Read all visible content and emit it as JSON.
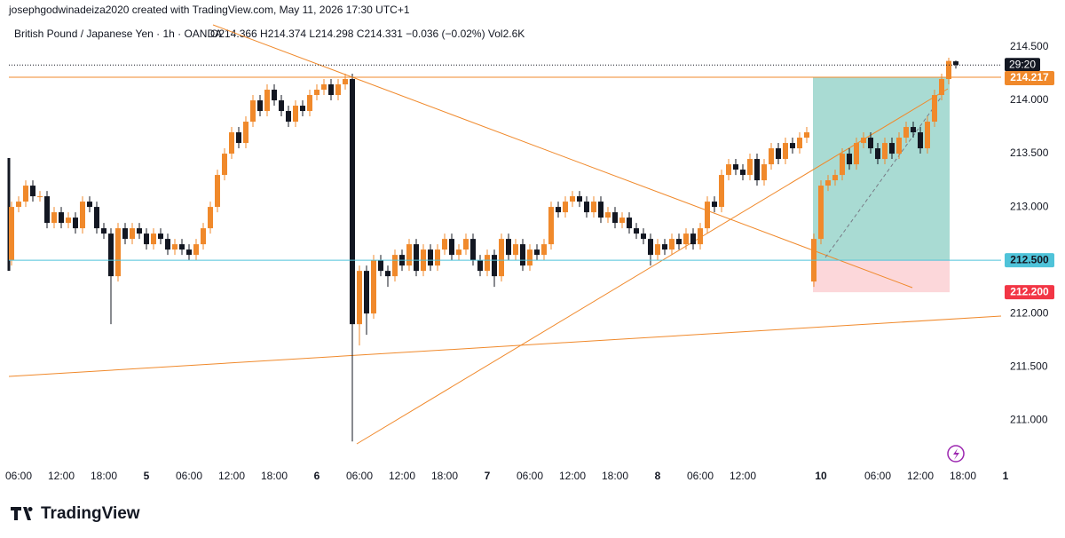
{
  "header": {
    "credit": "josephgodwinadeiza2020 created with TradingView.com, May 11, 2026 17:30 UTC+1",
    "symbol": "British Pound / Japanese Yen · 1h · OANDA",
    "ohlc": "O214.366 H214.374 L214.298 C214.331 −0.036 (−0.02%) Vol2.6K"
  },
  "footer": {
    "brand": "TradingView"
  },
  "chart_data": {
    "type": "candlestick",
    "up_color": "#f0892b",
    "down_color": "#131722",
    "ylim": [
      210.61,
      214.625
    ],
    "yticks": [
      {
        "value": 214.5,
        "label": "214.500"
      },
      {
        "value": 214.0,
        "label": "214.000"
      },
      {
        "value": 213.5,
        "label": "213.500"
      },
      {
        "value": 213.0,
        "label": "213.000"
      },
      {
        "value": 212.0,
        "label": "212.000"
      },
      {
        "value": 211.5,
        "label": "211.500"
      },
      {
        "value": 211.0,
        "label": "211.000"
      }
    ],
    "xticks": [
      {
        "value": 1,
        "label": "06:00"
      },
      {
        "value": 7,
        "label": "12:00"
      },
      {
        "value": 13,
        "label": "18:00"
      },
      {
        "value": 19,
        "label": "5"
      },
      {
        "value": 25,
        "label": "06:00"
      },
      {
        "value": 31,
        "label": "12:00"
      },
      {
        "value": 37,
        "label": "18:00"
      },
      {
        "value": 43,
        "label": "6"
      },
      {
        "value": 49,
        "label": "06:00"
      },
      {
        "value": 55,
        "label": "12:00"
      },
      {
        "value": 61,
        "label": "18:00"
      },
      {
        "value": 67,
        "label": "7"
      },
      {
        "value": 73,
        "label": "06:00"
      },
      {
        "value": 79,
        "label": "12:00"
      },
      {
        "value": 85,
        "label": "18:00"
      },
      {
        "value": 91,
        "label": "8"
      },
      {
        "value": 97,
        "label": "06:00"
      },
      {
        "value": 103,
        "label": "12:00"
      },
      {
        "value": 114,
        "label": "10"
      },
      {
        "value": 122,
        "label": "06:00"
      },
      {
        "value": 128,
        "label": "12:00"
      },
      {
        "value": 134,
        "label": "18:00"
      },
      {
        "value": 140,
        "label": "1"
      }
    ],
    "price_labels": [
      {
        "value": 214.217,
        "label": "214.217",
        "color": "#f0892b"
      },
      {
        "value": 212.5,
        "label": "212.500",
        "color": "#4fc3d9"
      },
      {
        "value": 212.2,
        "label": "212.200",
        "color": "#f23645"
      }
    ],
    "countdown": "29:20",
    "candles": [
      [
        212.5,
        213.05,
        212.45,
        213.0
      ],
      [
        213.0,
        213.1,
        212.95,
        213.05
      ],
      [
        213.05,
        213.25,
        213.0,
        213.2
      ],
      [
        213.2,
        213.25,
        213.05,
        213.1
      ],
      [
        213.1,
        213.15,
        213.05,
        213.1
      ],
      [
        213.1,
        213.15,
        212.8,
        212.85
      ],
      [
        212.85,
        213.0,
        212.8,
        212.95
      ],
      [
        212.95,
        213.0,
        212.8,
        212.85
      ],
      [
        212.85,
        212.95,
        212.8,
        212.9
      ],
      [
        212.9,
        212.95,
        212.75,
        212.8
      ],
      [
        212.8,
        213.1,
        212.75,
        213.05
      ],
      [
        213.05,
        213.1,
        212.95,
        213.0
      ],
      [
        213.0,
        213.05,
        212.75,
        212.8
      ],
      [
        212.8,
        212.85,
        212.7,
        212.75
      ],
      [
        212.75,
        212.8,
        211.9,
        212.35
      ],
      [
        212.35,
        212.85,
        212.3,
        212.8
      ],
      [
        212.8,
        212.85,
        212.65,
        212.7
      ],
      [
        212.7,
        212.85,
        212.65,
        212.8
      ],
      [
        212.8,
        212.85,
        212.7,
        212.75
      ],
      [
        212.75,
        212.8,
        212.6,
        212.65
      ],
      [
        212.65,
        212.8,
        212.6,
        212.75
      ],
      [
        212.75,
        212.8,
        212.65,
        212.7
      ],
      [
        212.7,
        212.75,
        212.55,
        212.6
      ],
      [
        212.6,
        212.7,
        212.55,
        212.65
      ],
      [
        212.65,
        212.7,
        212.55,
        212.6
      ],
      [
        212.6,
        212.65,
        212.5,
        212.55
      ],
      [
        212.55,
        212.7,
        212.5,
        212.65
      ],
      [
        212.65,
        212.85,
        212.6,
        212.8
      ],
      [
        212.8,
        213.05,
        212.75,
        213.0
      ],
      [
        213.0,
        213.35,
        212.95,
        213.3
      ],
      [
        213.3,
        213.55,
        213.25,
        213.5
      ],
      [
        213.5,
        213.75,
        213.45,
        213.7
      ],
      [
        213.7,
        213.75,
        213.55,
        213.6
      ],
      [
        213.6,
        213.85,
        213.55,
        213.8
      ],
      [
        213.8,
        214.05,
        213.75,
        214.0
      ],
      [
        214.0,
        214.05,
        213.85,
        213.9
      ],
      [
        213.9,
        214.15,
        213.85,
        214.1
      ],
      [
        214.1,
        214.15,
        213.95,
        214.0
      ],
      [
        214.0,
        214.05,
        213.85,
        213.9
      ],
      [
        213.9,
        213.95,
        213.75,
        213.8
      ],
      [
        213.8,
        214.0,
        213.75,
        213.95
      ],
      [
        213.95,
        214.0,
        213.85,
        213.9
      ],
      [
        213.9,
        214.1,
        213.85,
        214.05
      ],
      [
        214.05,
        214.15,
        214.0,
        214.1
      ],
      [
        214.1,
        214.2,
        214.05,
        214.15
      ],
      [
        214.15,
        214.2,
        214.0,
        214.05
      ],
      [
        214.05,
        214.2,
        214.0,
        214.15
      ],
      [
        214.15,
        214.25,
        214.1,
        214.2
      ],
      [
        214.2,
        214.25,
        210.8,
        211.9
      ],
      [
        211.9,
        212.45,
        211.7,
        212.4
      ],
      [
        212.4,
        212.45,
        211.8,
        212.0
      ],
      [
        212.0,
        212.55,
        211.95,
        212.5
      ],
      [
        212.5,
        212.55,
        212.35,
        212.4
      ],
      [
        212.4,
        212.45,
        212.25,
        212.35
      ],
      [
        212.35,
        212.6,
        212.3,
        212.55
      ],
      [
        212.55,
        212.6,
        212.4,
        212.45
      ],
      [
        212.45,
        212.7,
        212.4,
        212.65
      ],
      [
        212.65,
        212.7,
        212.35,
        212.4
      ],
      [
        212.4,
        212.65,
        212.35,
        212.6
      ],
      [
        212.6,
        212.65,
        212.4,
        212.45
      ],
      [
        212.45,
        212.65,
        212.4,
        212.6
      ],
      [
        212.6,
        212.75,
        212.55,
        212.7
      ],
      [
        212.7,
        212.75,
        212.5,
        212.55
      ],
      [
        212.55,
        212.65,
        212.5,
        212.6
      ],
      [
        212.6,
        212.75,
        212.55,
        212.7
      ],
      [
        212.7,
        212.75,
        212.45,
        212.5
      ],
      [
        212.5,
        212.55,
        212.35,
        212.4
      ],
      [
        212.4,
        212.6,
        212.35,
        212.55
      ],
      [
        212.55,
        212.6,
        212.25,
        212.35
      ],
      [
        212.35,
        212.75,
        212.3,
        212.7
      ],
      [
        212.7,
        212.75,
        212.5,
        212.55
      ],
      [
        212.55,
        212.7,
        212.5,
        212.65
      ],
      [
        212.65,
        212.7,
        212.4,
        212.45
      ],
      [
        212.45,
        212.65,
        212.4,
        212.6
      ],
      [
        212.6,
        212.65,
        212.5,
        212.55
      ],
      [
        212.55,
        212.7,
        212.5,
        212.65
      ],
      [
        212.65,
        213.05,
        212.6,
        213.0
      ],
      [
        213.0,
        213.05,
        212.9,
        212.95
      ],
      [
        212.95,
        213.1,
        212.9,
        213.05
      ],
      [
        213.05,
        213.15,
        213.0,
        213.1
      ],
      [
        213.1,
        213.15,
        213.0,
        213.05
      ],
      [
        213.05,
        213.1,
        212.9,
        212.95
      ],
      [
        212.95,
        213.1,
        212.9,
        213.05
      ],
      [
        213.05,
        213.1,
        212.85,
        212.9
      ],
      [
        212.9,
        213.0,
        212.85,
        212.95
      ],
      [
        212.95,
        213.0,
        212.8,
        212.85
      ],
      [
        212.85,
        212.95,
        212.8,
        212.9
      ],
      [
        212.9,
        212.95,
        212.75,
        212.8
      ],
      [
        212.8,
        212.85,
        212.7,
        212.75
      ],
      [
        212.75,
        212.8,
        212.65,
        212.7
      ],
      [
        212.7,
        212.75,
        212.45,
        212.55
      ],
      [
        212.55,
        212.7,
        212.5,
        212.65
      ],
      [
        212.65,
        212.7,
        212.55,
        212.6
      ],
      [
        212.6,
        212.75,
        212.55,
        212.7
      ],
      [
        212.7,
        212.75,
        212.6,
        212.65
      ],
      [
        212.65,
        212.8,
        212.6,
        212.75
      ],
      [
        212.75,
        212.8,
        212.6,
        212.65
      ],
      [
        212.65,
        212.85,
        212.6,
        212.8
      ],
      [
        212.8,
        213.1,
        212.75,
        213.05
      ],
      [
        213.05,
        213.1,
        212.95,
        213.0
      ],
      [
        213.0,
        213.35,
        212.95,
        213.3
      ],
      [
        213.3,
        213.45,
        213.25,
        213.4
      ],
      [
        213.4,
        213.45,
        213.3,
        213.35
      ],
      [
        213.35,
        213.4,
        213.25,
        213.3
      ],
      [
        213.3,
        213.5,
        213.25,
        213.45
      ],
      [
        213.45,
        213.5,
        213.2,
        213.25
      ],
      [
        213.25,
        213.45,
        213.2,
        213.4
      ],
      [
        213.4,
        213.6,
        213.35,
        213.55
      ],
      [
        213.55,
        213.6,
        213.4,
        213.45
      ],
      [
        213.45,
        213.65,
        213.4,
        213.6
      ],
      [
        213.6,
        213.65,
        213.5,
        213.55
      ],
      [
        213.55,
        213.7,
        213.5,
        213.65
      ],
      [
        213.65,
        213.75,
        213.6,
        213.7
      ],
      [
        212.3,
        212.75,
        212.25,
        212.7
      ],
      [
        212.7,
        213.25,
        212.65,
        213.2
      ],
      [
        213.2,
        213.3,
        213.15,
        213.25
      ],
      [
        213.25,
        213.35,
        213.2,
        213.3
      ],
      [
        213.3,
        213.55,
        213.25,
        213.5
      ],
      [
        213.5,
        213.55,
        213.35,
        213.4
      ],
      [
        213.4,
        213.65,
        213.35,
        213.6
      ],
      [
        213.6,
        213.7,
        213.55,
        213.65
      ],
      [
        213.65,
        213.7,
        213.5,
        213.55
      ],
      [
        213.55,
        213.6,
        213.4,
        213.45
      ],
      [
        213.45,
        213.65,
        213.4,
        213.6
      ],
      [
        213.6,
        213.65,
        213.45,
        213.5
      ],
      [
        213.5,
        213.7,
        213.45,
        213.65
      ],
      [
        213.65,
        213.8,
        213.6,
        213.75
      ],
      [
        213.75,
        213.8,
        213.65,
        213.7
      ],
      [
        213.7,
        213.75,
        213.5,
        213.55
      ],
      [
        213.55,
        213.85,
        213.5,
        213.8
      ],
      [
        213.8,
        214.1,
        213.75,
        214.05
      ],
      [
        214.05,
        214.25,
        214.0,
        214.2
      ],
      [
        214.2,
        214.4,
        214.15,
        214.37
      ],
      [
        214.366,
        214.374,
        214.298,
        214.331
      ]
    ]
  }
}
